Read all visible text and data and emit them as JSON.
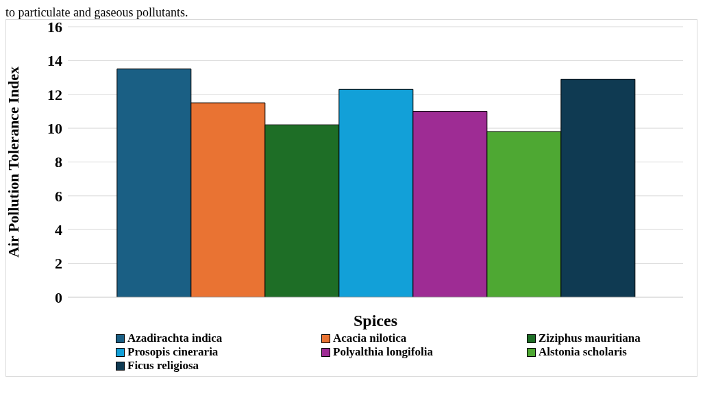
{
  "chart_data": {
    "type": "bar",
    "xlabel": "Spices",
    "ylabel": "Air Pollution Tolerance Index",
    "annotations": [
      "to particulate and gaseous pollutants."
    ],
    "categories": [
      null
    ],
    "series": [
      {
        "name": "Azadirachta indica",
        "color": "#1a5f84",
        "values": [
          13.5
        ]
      },
      {
        "name": "Acacia nilotica",
        "color": "#e97333",
        "values": [
          11.5
        ]
      },
      {
        "name": "Ziziphus mauritiana",
        "color": "#1e6e26",
        "values": [
          10.2
        ]
      },
      {
        "name": "Prosopis cineraria",
        "color": "#12a0d8",
        "values": [
          12.3
        ]
      },
      {
        "name": "Polyalthia longifolia",
        "color": "#9e2c94",
        "values": [
          11.0
        ]
      },
      {
        "name": "Alstonia scholaris",
        "color": "#4ea833",
        "values": [
          9.8
        ]
      },
      {
        "name": "Ficus religiosa",
        "color": "#0f3a52",
        "values": [
          12.9
        ]
      }
    ],
    "ylim": [
      0,
      16
    ],
    "yticks": [
      0,
      2,
      4,
      6,
      8,
      10,
      12,
      14,
      16
    ],
    "grid": "y",
    "legend": "bottom"
  }
}
